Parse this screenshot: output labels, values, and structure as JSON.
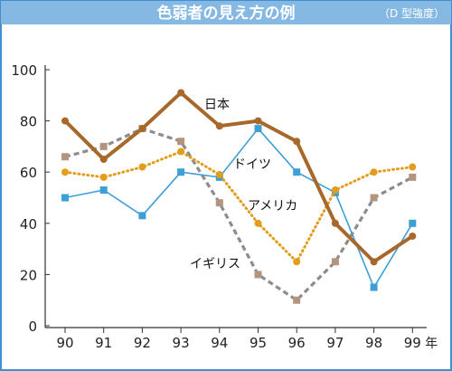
{
  "header": {
    "title": "色弱者の見え方の例",
    "subtitle": "（D 型強度）"
  },
  "colors": {
    "header_bg": "#86b8e4",
    "border": "#3f8fd1",
    "japan": "#a8682b",
    "germany": "#e39c1b",
    "usa": "#3d9fd6",
    "uk": "#8c8c8c",
    "uk_marker": "#b29580"
  },
  "chart_data": {
    "type": "line",
    "title": "色弱者の見え方の例",
    "subtitle": "（D 型強度）",
    "categories": [
      "90",
      "91",
      "92",
      "93",
      "94",
      "95",
      "96",
      "97",
      "98",
      "99"
    ],
    "x_unit": "年",
    "ylim": [
      0,
      100
    ],
    "y_ticks": [
      0,
      20,
      40,
      60,
      80,
      100
    ],
    "grid": false,
    "legend": "inline labels",
    "series": [
      {
        "name": "日本",
        "key": "japan",
        "style": "solid-thick",
        "marker": "circle",
        "values": [
          80,
          65,
          77,
          91,
          78,
          80,
          72,
          40,
          25,
          35
        ]
      },
      {
        "name": "ドイツ",
        "key": "germany",
        "style": "dotted",
        "marker": "circle",
        "values": [
          60,
          58,
          62,
          68,
          59,
          40,
          25,
          53,
          60,
          62
        ]
      },
      {
        "name": "アメリカ",
        "key": "usa",
        "style": "solid-thin",
        "marker": "square",
        "values": [
          50,
          53,
          43,
          60,
          58,
          77,
          60,
          52,
          15,
          40
        ]
      },
      {
        "name": "イギリス",
        "key": "uk",
        "style": "dashed",
        "marker": "square",
        "values": [
          66,
          70,
          77,
          72,
          48,
          20,
          10,
          25,
          50,
          58
        ]
      }
    ]
  }
}
